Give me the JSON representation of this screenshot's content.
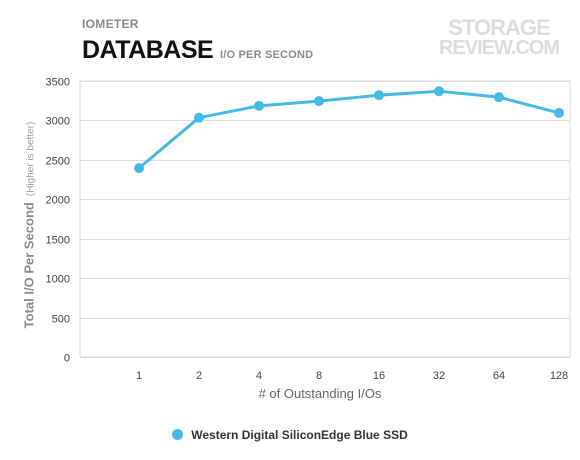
{
  "header": {
    "supertitle": "IOMETER",
    "title": "DATABASE",
    "subtitle": "I/O PER SECOND",
    "logo_line1": "STORAGE",
    "logo_line2": "REVIEW.COM"
  },
  "chart_data": {
    "type": "line",
    "title": "DATABASE",
    "subtitle": "I/O PER SECOND",
    "xlabel": "# of Outstanding I/Os",
    "ylabel": "Total I/O Per Second",
    "ylabel_note": "(Higher is better)",
    "categories": [
      "1",
      "2",
      "4",
      "8",
      "16",
      "32",
      "64",
      "128"
    ],
    "ylim": [
      0,
      3500
    ],
    "yticks": [
      0,
      500,
      1000,
      1500,
      2000,
      2500,
      3000,
      3500
    ],
    "grid": true,
    "legend_position": "bottom",
    "series": [
      {
        "name": "Western Digital SiliconEdge Blue SSD",
        "color": "#45b9e6",
        "values": [
          2395,
          3035,
          3185,
          3245,
          3320,
          3370,
          3295,
          3095
        ]
      }
    ]
  }
}
